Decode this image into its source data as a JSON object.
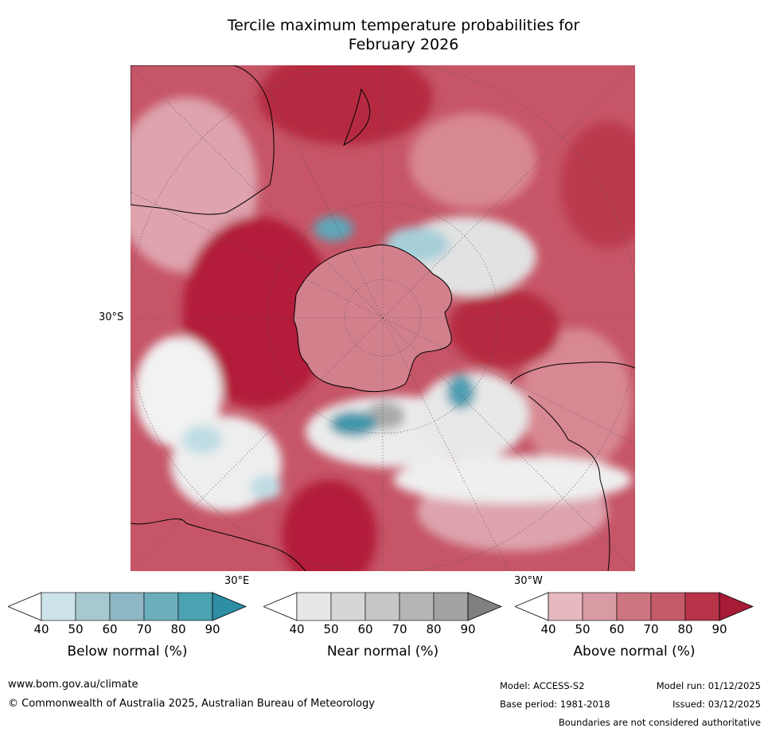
{
  "title_line1": "Tercile maximum temperature probabilities for",
  "title_line2": "February 2026",
  "axis_labels": {
    "lat": "30°S",
    "lon_e": "30°E",
    "lon_w": "30°W"
  },
  "colorbars": [
    {
      "name": "below",
      "title": "Below normal (%)",
      "colors": [
        "#ffffff",
        "#cde3ea",
        "#a8c8d0",
        "#8db7c4",
        "#6caebc",
        "#4ba2b2",
        "#2e8ea3"
      ],
      "ticks": [
        "40",
        "50",
        "60",
        "70",
        "80",
        "90"
      ]
    },
    {
      "name": "near",
      "title": "Near normal (%)",
      "colors": [
        "#ffffff",
        "#e6e6e6",
        "#d6d6d6",
        "#c6c6c6",
        "#b5b5b5",
        "#a3a3a3",
        "#808080"
      ],
      "ticks": [
        "40",
        "50",
        "60",
        "70",
        "80",
        "90"
      ]
    },
    {
      "name": "above",
      "title": "Above normal (%)",
      "colors": [
        "#ffffff",
        "#e5b9bf",
        "#d89aa3",
        "#cc7480",
        "#c45a68",
        "#b73348",
        "#a61c36"
      ],
      "ticks": [
        "40",
        "50",
        "60",
        "70",
        "80",
        "90"
      ]
    }
  ],
  "footer": {
    "url": "www.bom.gov.au/climate",
    "copyright": "© Commonwealth of Australia 2025, Australian Bureau of Meteorology",
    "model": "Model: ACCESS-S2",
    "base_period": "Base period: 1981-2018",
    "model_run": "Model run: 01/12/2025",
    "issued": "Issued: 03/12/2025",
    "boundaries": "Boundaries are not considered authoritative"
  },
  "chart_data": {
    "type": "heatmap",
    "title": "Tercile maximum temperature probabilities for February 2026",
    "projection": "south polar stereographic",
    "categories": [
      "Below normal (%)",
      "Near normal (%)",
      "Above normal (%)"
    ],
    "levels": [
      40,
      50,
      60,
      70,
      80,
      90
    ],
    "axis_labels": [
      "30°S",
      "30°E",
      "30°W"
    ],
    "dominant_category": "Above normal"
  }
}
